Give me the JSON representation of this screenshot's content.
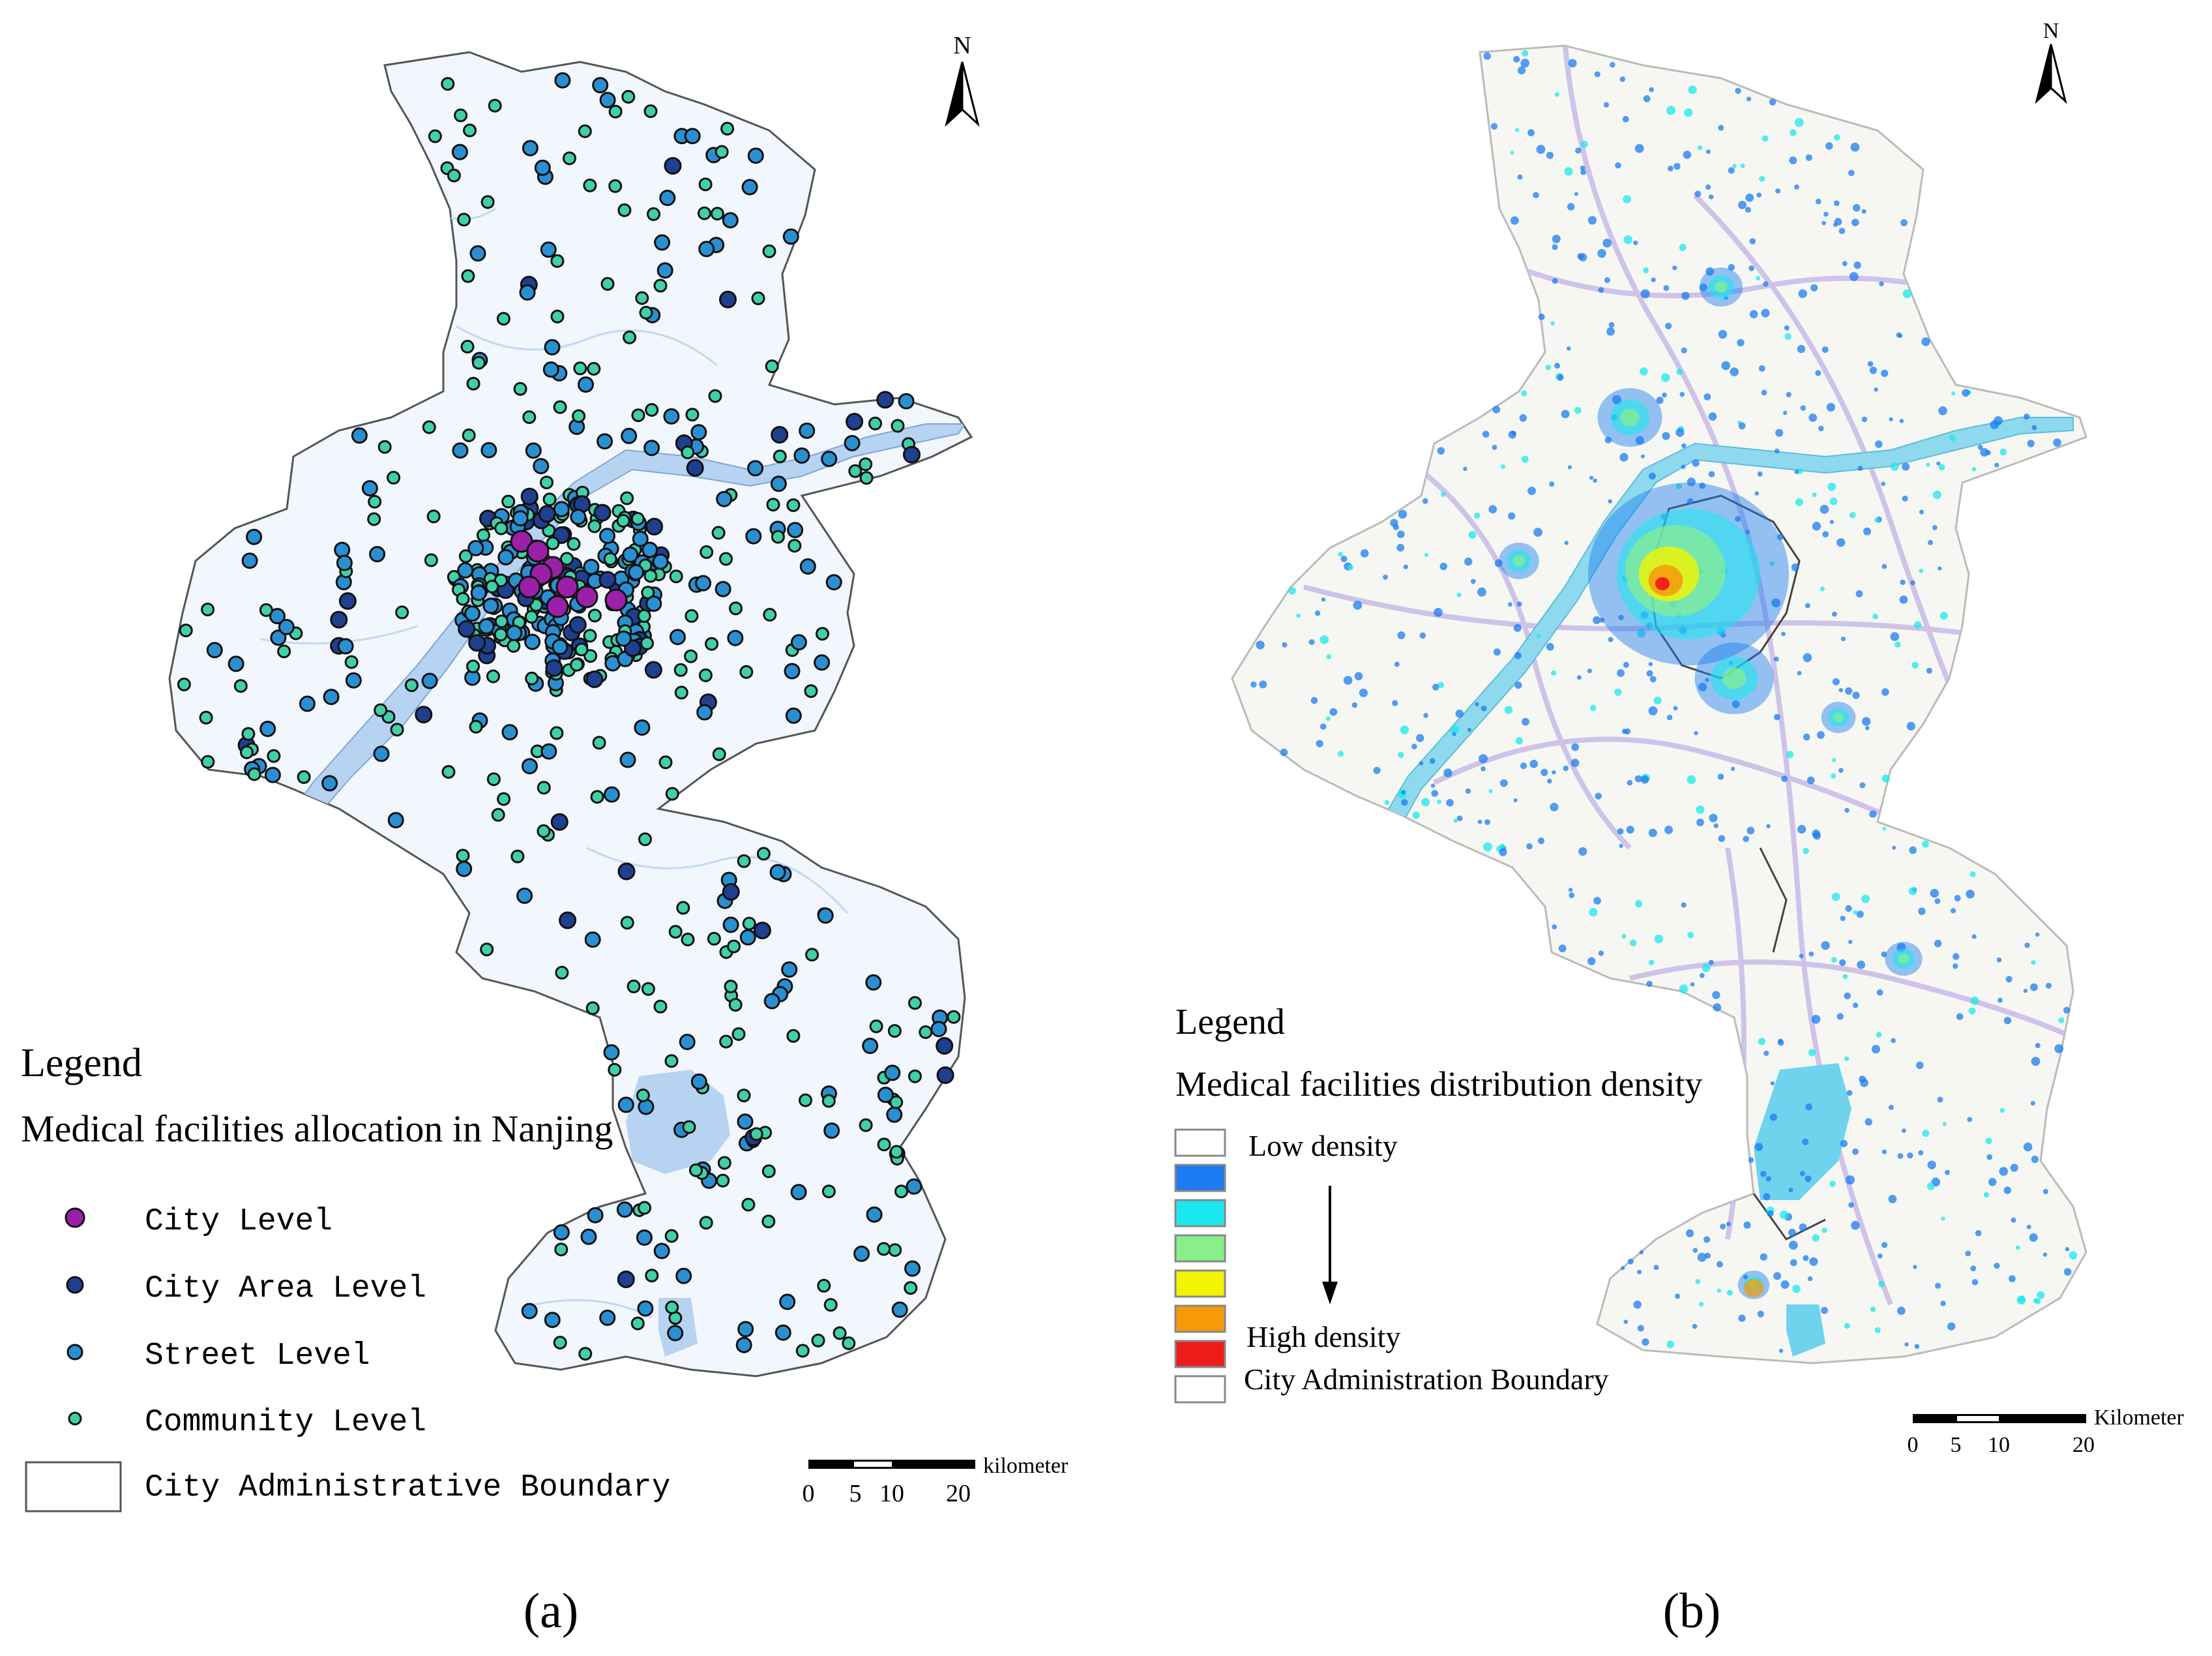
{
  "panel_a": {
    "north": "N",
    "legend_title": "Legend",
    "legend_subtitle": "Medical facilities  allocation   in Nanjing",
    "legend_items": [
      {
        "label": "City Level",
        "color": "#9b1fa8"
      },
      {
        "label": "City Area Level",
        "color": "#1f3f8f"
      },
      {
        "label": "Street Level",
        "color": "#2a8fd0"
      },
      {
        "label": "Community Level",
        "color": "#3fd0a8"
      }
    ],
    "boundary_label": "City Administrative Boundary",
    "scale": {
      "unit": "kilometer",
      "ticks": [
        "0",
        "5",
        "10",
        "20"
      ]
    },
    "caption": "(a)"
  },
  "panel_b": {
    "north": "N",
    "legend_title": "Legend",
    "legend_subtitle": "Medical facilities distribution density",
    "density_colors": [
      "#ffffff",
      "#1a7cf0",
      "#1ae8ee",
      "#88f08a",
      "#f4f400",
      "#f79a0a",
      "#ef1a1a"
    ],
    "low_label": "Low density",
    "high_label": "High density",
    "boundary_label": "City Administration Boundary",
    "scale": {
      "unit": "Kilometer",
      "ticks": [
        "0",
        "5",
        "10",
        "20"
      ]
    },
    "caption": "(b)"
  },
  "colors": {
    "region_fill_a": "#f2f6fd",
    "water": "#b7d3f2",
    "river_b": "#8fd9ee",
    "roads": "#c9b9e8"
  }
}
